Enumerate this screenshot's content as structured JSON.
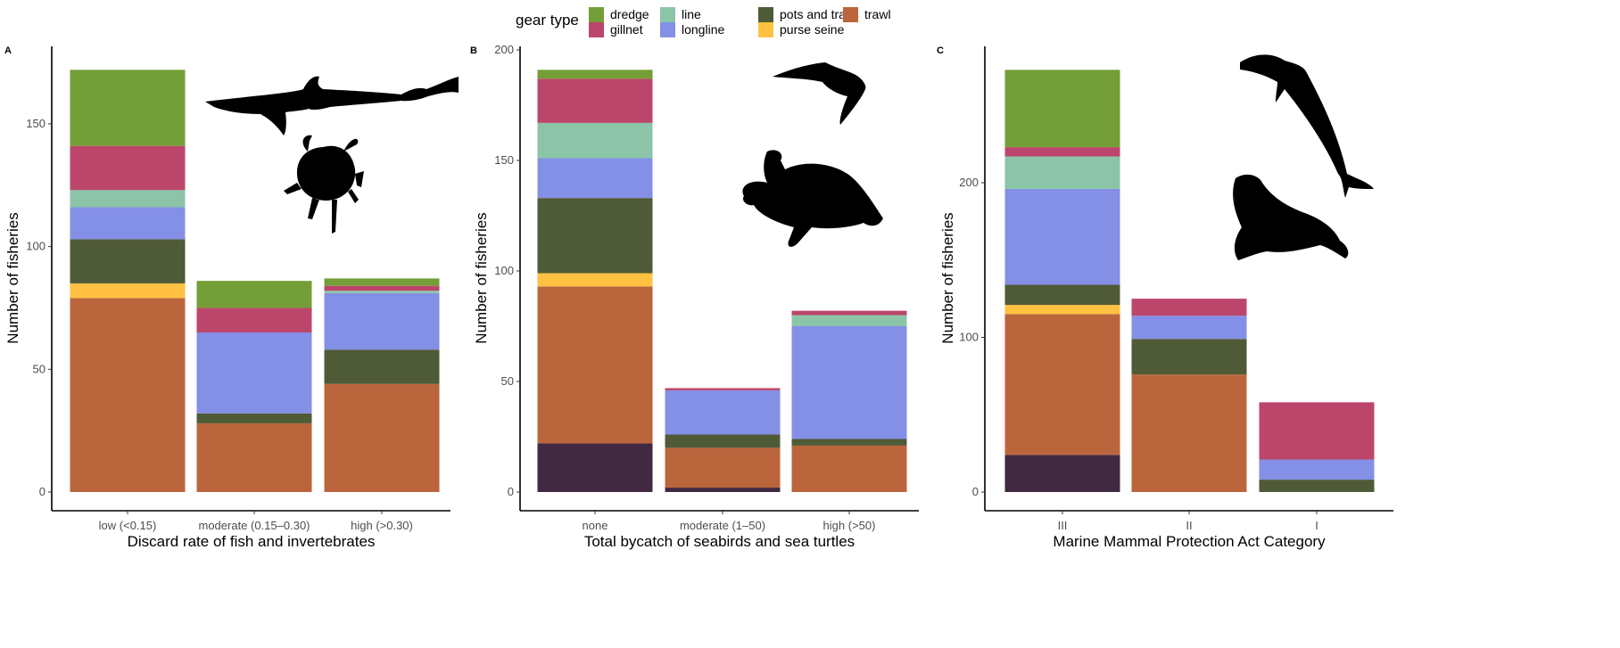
{
  "legend": {
    "title": "gear type",
    "items": [
      {
        "label": "dredge",
        "color": "#749e37"
      },
      {
        "label": "gillnet",
        "color": "#bc466b"
      },
      {
        "label": "line",
        "color": "#8bc4a8"
      },
      {
        "label": "longline",
        "color": "#848fe6"
      },
      {
        "label": "pots and traps",
        "color": "#4f5a37"
      },
      {
        "label": "purse seine",
        "color": "#fec142"
      },
      {
        "label": "trawl",
        "color": "#bb653d"
      }
    ]
  },
  "chart_data": [
    {
      "type": "bar",
      "stacked": true,
      "panel_label": "A",
      "xlabel": "Discard rate of fish and invertebrates",
      "ylabel": "Number of fisheries",
      "ylim": [
        0,
        180
      ],
      "yticks": [
        0,
        50,
        100,
        150
      ],
      "categories": [
        "low (<0.15)",
        "moderate (0.15–0.30)",
        "high (>0.30)"
      ],
      "silhouettes": [
        "shark",
        "crab"
      ],
      "series": [
        {
          "name": "",
          "color": "#412a41",
          "values": [
            0,
            0,
            0
          ]
        },
        {
          "name": "trawl",
          "color": "#bb653d",
          "values": [
            79,
            28,
            44
          ]
        },
        {
          "name": "purse seine",
          "color": "#fec142",
          "values": [
            6,
            0,
            0
          ]
        },
        {
          "name": "pots and traps",
          "color": "#4f5a37",
          "values": [
            18,
            4,
            14
          ]
        },
        {
          "name": "longline",
          "color": "#848fe6",
          "values": [
            13,
            33,
            23
          ]
        },
        {
          "name": "line",
          "color": "#8bc4a8",
          "values": [
            7,
            0,
            1
          ]
        },
        {
          "name": "gillnet",
          "color": "#bc466b",
          "values": [
            18,
            10,
            2
          ]
        },
        {
          "name": "dredge",
          "color": "#749e37",
          "values": [
            31,
            11,
            3
          ]
        }
      ]
    },
    {
      "type": "bar",
      "stacked": true,
      "panel_label": "B",
      "xlabel": "Total bycatch of seabirds and sea turtles",
      "ylabel": "Number of fisheries",
      "ylim": [
        0,
        200
      ],
      "yticks": [
        0,
        50,
        100,
        150,
        200
      ],
      "categories": [
        "none",
        "moderate (1–50)",
        "high (>50)"
      ],
      "silhouettes": [
        "seabird",
        "sea-turtle"
      ],
      "series": [
        {
          "name": "",
          "color": "#412a41",
          "values": [
            22,
            2,
            0
          ]
        },
        {
          "name": "trawl",
          "color": "#bb653d",
          "values": [
            71,
            18,
            21
          ]
        },
        {
          "name": "purse seine",
          "color": "#fec142",
          "values": [
            6,
            0,
            0
          ]
        },
        {
          "name": "pots and traps",
          "color": "#4f5a37",
          "values": [
            34,
            6,
            3
          ]
        },
        {
          "name": "longline",
          "color": "#848fe6",
          "values": [
            18,
            20,
            51
          ]
        },
        {
          "name": "line",
          "color": "#8bc4a8",
          "values": [
            16,
            0,
            5
          ]
        },
        {
          "name": "gillnet",
          "color": "#bc466b",
          "values": [
            20,
            1,
            2
          ]
        },
        {
          "name": "dredge",
          "color": "#749e37",
          "values": [
            4,
            0,
            0
          ]
        }
      ]
    },
    {
      "type": "bar",
      "stacked": true,
      "panel_label": "C",
      "xlabel": "Marine Mammal Protection Act Category",
      "ylabel": "Number of fisheries",
      "ylim": [
        0,
        286
      ],
      "yticks": [
        0,
        100,
        200
      ],
      "categories": [
        "III",
        "II",
        "I"
      ],
      "silhouettes": [
        "dolphin",
        "seal"
      ],
      "series": [
        {
          "name": "",
          "color": "#412a41",
          "values": [
            24,
            0,
            0
          ]
        },
        {
          "name": "trawl",
          "color": "#bb653d",
          "values": [
            91,
            76,
            0
          ]
        },
        {
          "name": "purse seine",
          "color": "#fec142",
          "values": [
            6,
            0,
            0
          ]
        },
        {
          "name": "pots and traps",
          "color": "#4f5a37",
          "values": [
            13,
            23,
            8
          ]
        },
        {
          "name": "longline",
          "color": "#848fe6",
          "values": [
            62,
            15,
            13
          ]
        },
        {
          "name": "line",
          "color": "#8bc4a8",
          "values": [
            21,
            0,
            0
          ]
        },
        {
          "name": "gillnet",
          "color": "#bc466b",
          "values": [
            6,
            11,
            37
          ]
        },
        {
          "name": "dredge",
          "color": "#749e37",
          "values": [
            50,
            0,
            0
          ]
        }
      ]
    }
  ]
}
